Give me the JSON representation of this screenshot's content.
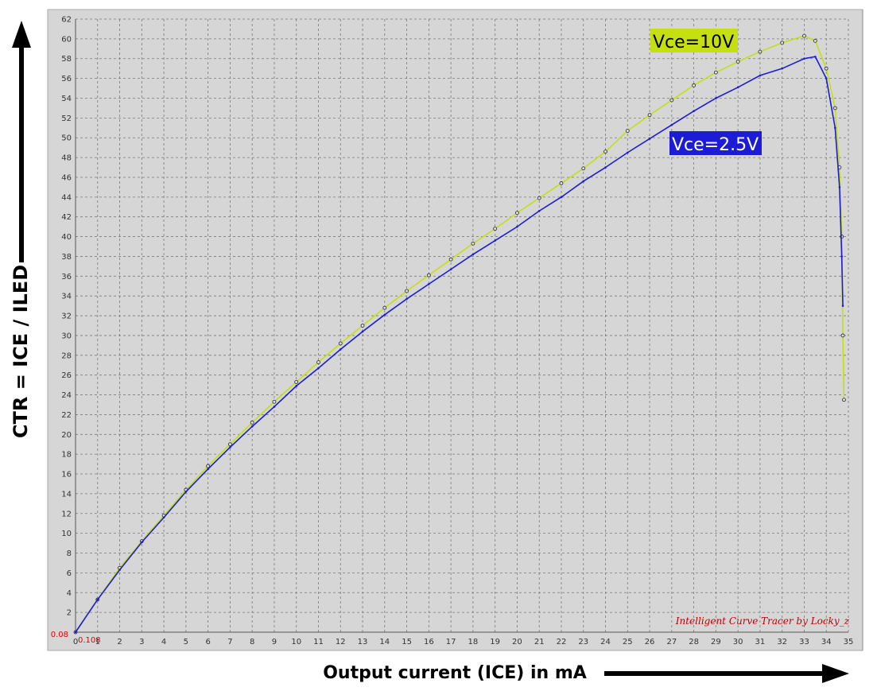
{
  "chart_data": {
    "type": "line",
    "y_label": "CTR = ICE / ILED",
    "x_label": "Output current  (ICE)  in mA",
    "y_origin_label": "0.08",
    "x_origin_label": "0.108",
    "watermark": "Intelligent Curve Tracer by Locky_z",
    "xlim": [
      0,
      35
    ],
    "ylim": [
      0,
      62
    ],
    "xticks": [
      0,
      1,
      2,
      3,
      4,
      5,
      6,
      7,
      8,
      9,
      10,
      11,
      12,
      13,
      14,
      15,
      16,
      17,
      18,
      19,
      20,
      21,
      22,
      23,
      24,
      25,
      26,
      27,
      28,
      29,
      30,
      31,
      32,
      33,
      34,
      35
    ],
    "yticks": [
      2,
      4,
      6,
      8,
      10,
      12,
      14,
      16,
      18,
      20,
      22,
      24,
      26,
      28,
      30,
      32,
      34,
      36,
      38,
      40,
      42,
      44,
      46,
      48,
      50,
      52,
      54,
      56,
      58,
      60,
      62
    ],
    "grid": true,
    "series": [
      {
        "name": "Vce=10V",
        "color": "#c6df10",
        "marker": true,
        "x": [
          0,
          1,
          2,
          3,
          4,
          5,
          6,
          7,
          8,
          9,
          10,
          11,
          12,
          13,
          14,
          15,
          16,
          17,
          18,
          19,
          20,
          21,
          22,
          23,
          24,
          25,
          26,
          27,
          28,
          29,
          30,
          31,
          32,
          33,
          33.5,
          34,
          34.4,
          34.6,
          34.7,
          34.75,
          34.8
        ],
        "values": [
          0,
          3.3,
          6.5,
          9.2,
          11.8,
          14.4,
          16.8,
          19,
          21.2,
          23.3,
          25.3,
          27.3,
          29.2,
          31,
          32.8,
          34.5,
          36.1,
          37.7,
          39.3,
          40.8,
          42.4,
          43.9,
          45.4,
          46.9,
          48.6,
          50.7,
          52.3,
          53.8,
          55.3,
          56.6,
          57.7,
          58.7,
          59.6,
          60.3,
          59.8,
          57,
          53,
          47,
          40,
          30,
          23.5
        ]
      },
      {
        "name": "Vce=2.5V",
        "color": "#1c1cd6",
        "marker": false,
        "x": [
          0,
          1,
          2,
          3,
          4,
          5,
          6,
          7,
          8,
          9,
          10,
          11,
          12,
          13,
          14,
          15,
          16,
          17,
          18,
          19,
          20,
          21,
          22,
          23,
          24,
          25,
          26,
          27,
          28,
          29,
          30,
          31,
          32,
          33,
          33.5,
          34,
          34.4,
          34.6,
          34.7,
          34.75
        ],
        "values": [
          0,
          3.3,
          6.3,
          9.1,
          11.6,
          14.2,
          16.5,
          18.7,
          20.8,
          22.8,
          24.9,
          26.7,
          28.6,
          30.4,
          32.1,
          33.7,
          35.2,
          36.7,
          38.2,
          39.6,
          41,
          42.6,
          44,
          45.6,
          47,
          48.5,
          49.9,
          51.3,
          52.7,
          54,
          55.1,
          56.3,
          57,
          58,
          58.2,
          56,
          51,
          45,
          38,
          33
        ]
      }
    ]
  }
}
